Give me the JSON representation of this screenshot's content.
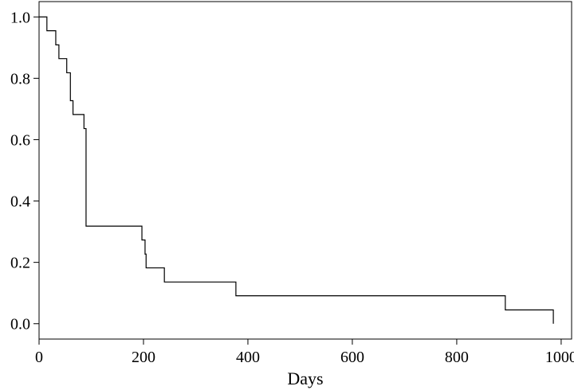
{
  "chart_data": {
    "type": "line",
    "step": true,
    "title": "",
    "xlabel": "Days",
    "ylabel": "",
    "xlim": [
      0,
      1020
    ],
    "ylim": [
      -0.05,
      1.05
    ],
    "xticks": [
      0,
      200,
      400,
      600,
      800,
      1000
    ],
    "yticks": [
      0.0,
      0.2,
      0.4,
      0.6,
      0.8,
      1.0
    ],
    "xtick_labels": [
      "0",
      "200",
      "400",
      "600",
      "800",
      "1000"
    ],
    "ytick_labels": [
      "0.0",
      "0.2",
      "0.4",
      "0.6",
      "0.8",
      "1.0"
    ],
    "grid": false,
    "legend": "none",
    "series": [
      {
        "x": [
          0,
          15,
          32,
          38,
          53,
          60,
          65,
          86,
          90,
          197,
          203,
          205,
          208,
          240,
          377,
          893,
          985,
          985
        ],
        "y": [
          1.0,
          0.955,
          0.909,
          0.864,
          0.818,
          0.727,
          0.682,
          0.636,
          0.318,
          0.273,
          0.227,
          0.182,
          0.182,
          0.136,
          0.091,
          0.045,
          0.045,
          0.0
        ]
      }
    ],
    "line_color": "#000000"
  }
}
